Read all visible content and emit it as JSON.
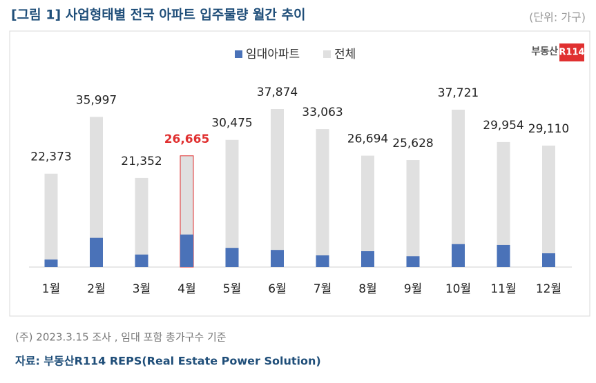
{
  "chart_data": {
    "type": "bar",
    "title": "[그림 1] 사업형태별 전국 아파트 입주물량 월간 추이",
    "unit_note": "(단위: 가구)",
    "logo": {
      "text": "부동산",
      "badge": "R114"
    },
    "categories": [
      "1월",
      "2월",
      "3월",
      "4월",
      "5월",
      "6월",
      "7월",
      "8월",
      "9월",
      "10월",
      "11월",
      "12월"
    ],
    "series": [
      {
        "name": "임대아파트",
        "color": "#4a72b8",
        "values": [
          1800,
          7000,
          3000,
          7800,
          4600,
          4100,
          2800,
          3800,
          2600,
          5500,
          5300,
          3300
        ]
      },
      {
        "name": "전체",
        "color": "#e0e0e0",
        "values": [
          22373,
          35997,
          21352,
          26665,
          30475,
          37874,
          33063,
          26694,
          25628,
          37721,
          29954,
          29110
        ],
        "value_labels": [
          "22,373",
          "35,997",
          "21,352",
          "26,665",
          "30,475",
          "37,874",
          "33,063",
          "26,694",
          "25,628",
          "37,721",
          "29,954",
          "29,110"
        ]
      }
    ],
    "highlight_index": 3,
    "highlight_color": "#e03030",
    "footnote": "(주) 2023.3.15 조사 , 임대 포함 총가구수 기준",
    "source": "자료: 부동산R114 REPS(Real Estate Power Solution)"
  }
}
